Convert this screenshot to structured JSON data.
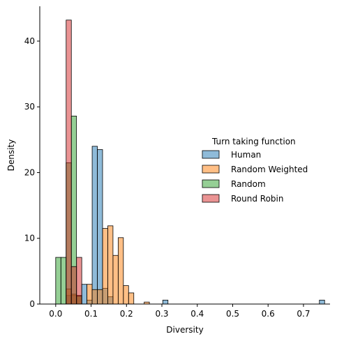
{
  "chart_data": {
    "type": "histogram",
    "xlabel": "Diversity",
    "ylabel": "Density",
    "xlim": [
      -0.045,
      0.775
    ],
    "ylim": [
      0,
      45.3
    ],
    "x_ticks": [
      {
        "value": 0.0,
        "label": "0.0"
      },
      {
        "value": 0.1,
        "label": "0.1"
      },
      {
        "value": 0.2,
        "label": "0.2"
      },
      {
        "value": 0.3,
        "label": "0.3"
      },
      {
        "value": 0.4,
        "label": "0.4"
      },
      {
        "value": 0.5,
        "label": "0.5"
      },
      {
        "value": 0.6,
        "label": "0.6"
      },
      {
        "value": 0.7,
        "label": "0.7"
      }
    ],
    "y_ticks": [
      {
        "value": 0,
        "label": "0"
      },
      {
        "value": 10,
        "label": "10"
      },
      {
        "value": 20,
        "label": "20"
      },
      {
        "value": 30,
        "label": "30"
      },
      {
        "value": 40,
        "label": "40"
      }
    ],
    "bin_width": 0.0147,
    "grid": false,
    "legend": {
      "title": "Turn taking function",
      "placement": "center-right"
    },
    "series": [
      {
        "name": "Human",
        "color": "#1f77b4",
        "bins": [
          [
            0.0295,
            1.3
          ],
          [
            0.0442,
            1.3
          ],
          [
            0.0589,
            1.3
          ],
          [
            0.0736,
            3.0
          ],
          [
            0.0883,
            0.6
          ],
          [
            0.103,
            24.0
          ],
          [
            0.1177,
            23.5
          ],
          [
            0.1324,
            2.4
          ],
          [
            0.1471,
            1.1
          ],
          [
            0.3025,
            0.6
          ],
          [
            0.745,
            0.6
          ]
        ]
      },
      {
        "name": "Random Weighted",
        "color": "#ff7f0e",
        "bins": [
          [
            0.0295,
            2.3
          ],
          [
            0.0442,
            1.5
          ],
          [
            0.0589,
            1.3
          ],
          [
            0.0883,
            3.0
          ],
          [
            0.103,
            2.2
          ],
          [
            0.1177,
            2.2
          ],
          [
            0.1324,
            11.5
          ],
          [
            0.1471,
            11.9
          ],
          [
            0.1618,
            7.4
          ],
          [
            0.1765,
            10.1
          ],
          [
            0.1912,
            2.8
          ],
          [
            0.2059,
            1.7
          ],
          [
            0.25,
            0.3
          ]
        ]
      },
      {
        "name": "Random",
        "color": "#2ca02c",
        "bins": [
          [
            0.0,
            7.1
          ],
          [
            0.0147,
            7.1
          ],
          [
            0.0294,
            21.5
          ],
          [
            0.0441,
            28.6
          ],
          [
            0.0588,
            1.2
          ]
        ]
      },
      {
        "name": "Round Robin",
        "color": "#d62728",
        "bins": [
          [
            0.0295,
            43.2
          ],
          [
            0.0442,
            5.7
          ],
          [
            0.0589,
            7.1
          ]
        ]
      }
    ]
  }
}
